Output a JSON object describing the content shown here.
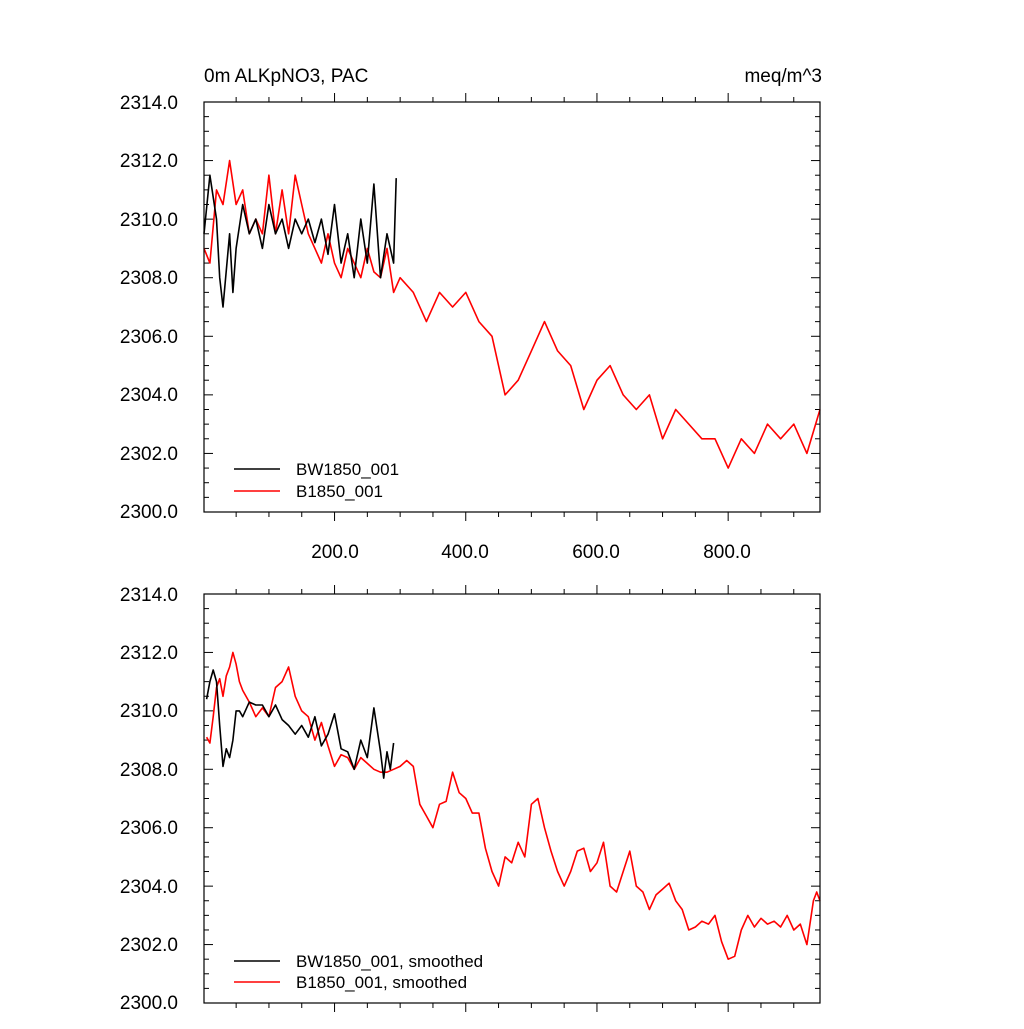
{
  "colors": {
    "BW1850_001": "#000000",
    "B1850_001": "#ff0000"
  },
  "charts": [
    {
      "title_left": "0m ALKpNO3, PAC",
      "title_right": "meq/m^3",
      "y_tick_labels": [
        "2300.0",
        "2302.0",
        "2304.0",
        "2306.0",
        "2308.0",
        "2310.0",
        "2312.0",
        "2314.0"
      ],
      "x_tick_labels": [
        "200.0",
        "400.0",
        "600.0",
        "800.0"
      ],
      "legend": [
        "BW1850_001",
        "B1850_001"
      ]
    },
    {
      "y_tick_labels": [
        "2300.0",
        "2302.0",
        "2304.0",
        "2306.0",
        "2308.0",
        "2310.0",
        "2312.0",
        "2314.0"
      ],
      "legend": [
        "BW1850_001, smoothed",
        "B1850_001, smoothed"
      ]
    }
  ],
  "chart_data": [
    {
      "type": "line",
      "title": "0m ALKpNO3, PAC",
      "units": "meq/m^3",
      "xlim": [
        1,
        940
      ],
      "ylim": [
        2300,
        2314
      ],
      "x_ticks": [
        200,
        400,
        600,
        800
      ],
      "y_ticks": [
        2300,
        2302,
        2304,
        2306,
        2308,
        2310,
        2312,
        2314
      ],
      "legend_position": "bottom-left",
      "series": [
        {
          "name": "BW1850_001",
          "color": "#000000",
          "x": [
            1,
            10,
            20,
            25,
            30,
            40,
            45,
            50,
            60,
            70,
            80,
            90,
            100,
            110,
            120,
            130,
            140,
            150,
            160,
            170,
            180,
            190,
            200,
            210,
            220,
            230,
            240,
            250,
            260,
            270,
            280,
            290,
            294
          ],
          "y": [
            2309.5,
            2311.5,
            2310.0,
            2308.0,
            2307.0,
            2309.5,
            2307.5,
            2309.0,
            2310.5,
            2309.5,
            2310.0,
            2309.0,
            2310.5,
            2309.5,
            2310.0,
            2309.0,
            2310.0,
            2309.5,
            2310.0,
            2309.2,
            2310.0,
            2308.8,
            2310.5,
            2308.5,
            2309.5,
            2308.0,
            2310.0,
            2308.5,
            2311.2,
            2308.0,
            2309.5,
            2308.5,
            2311.4
          ]
        },
        {
          "name": "B1850_001",
          "color": "#ff0000",
          "x": [
            1,
            10,
            20,
            30,
            40,
            50,
            60,
            70,
            80,
            90,
            100,
            110,
            120,
            130,
            140,
            150,
            160,
            170,
            180,
            190,
            200,
            210,
            220,
            230,
            240,
            250,
            260,
            270,
            280,
            290,
            300,
            320,
            340,
            360,
            380,
            400,
            420,
            440,
            460,
            480,
            500,
            520,
            540,
            560,
            580,
            600,
            620,
            640,
            660,
            680,
            700,
            720,
            740,
            760,
            780,
            800,
            820,
            840,
            860,
            880,
            900,
            920,
            940
          ],
          "y": [
            2309.0,
            2308.5,
            2311.0,
            2310.5,
            2312.0,
            2310.5,
            2311.0,
            2309.5,
            2310.0,
            2309.5,
            2311.5,
            2309.5,
            2311.0,
            2309.5,
            2311.5,
            2310.5,
            2309.5,
            2309.0,
            2308.5,
            2309.5,
            2308.5,
            2308.0,
            2309.0,
            2308.5,
            2308.0,
            2309.0,
            2308.2,
            2308.0,
            2309.0,
            2307.5,
            2308.0,
            2307.5,
            2306.5,
            2307.5,
            2307.0,
            2307.5,
            2306.5,
            2306.0,
            2304.0,
            2304.5,
            2305.5,
            2306.5,
            2305.5,
            2305.0,
            2303.5,
            2304.5,
            2305.0,
            2304.0,
            2303.5,
            2304.0,
            2302.5,
            2303.5,
            2303.0,
            2302.5,
            2302.5,
            2301.5,
            2302.5,
            2302.0,
            2303.0,
            2302.5,
            2303.0,
            2302.0,
            2303.5
          ]
        }
      ]
    },
    {
      "type": "line",
      "xlim": [
        1,
        940
      ],
      "ylim": [
        2300,
        2314
      ],
      "x_ticks": [
        200,
        400,
        600,
        800
      ],
      "y_ticks": [
        2300,
        2302,
        2304,
        2306,
        2308,
        2310,
        2312,
        2314
      ],
      "legend_position": "bottom-left",
      "series": [
        {
          "name": "BW1850_001, smoothed",
          "color": "#000000",
          "x": [
            5,
            10,
            15,
            20,
            25,
            30,
            35,
            40,
            45,
            50,
            55,
            60,
            70,
            80,
            90,
            100,
            110,
            120,
            130,
            140,
            150,
            160,
            170,
            180,
            190,
            200,
            210,
            220,
            230,
            240,
            250,
            260,
            270,
            275,
            280,
            285,
            290
          ],
          "y": [
            2310.4,
            2311.0,
            2311.4,
            2311.0,
            2309.5,
            2308.1,
            2308.7,
            2308.4,
            2309.0,
            2310.0,
            2310.0,
            2309.8,
            2310.3,
            2310.2,
            2310.2,
            2309.8,
            2310.2,
            2309.7,
            2309.5,
            2309.2,
            2309.5,
            2309.1,
            2309.8,
            2308.8,
            2309.2,
            2309.9,
            2308.7,
            2308.6,
            2308.0,
            2309.0,
            2308.4,
            2310.1,
            2308.6,
            2307.7,
            2308.6,
            2308.0,
            2308.9
          ]
        },
        {
          "name": "B1850_001, smoothed",
          "color": "#ff0000",
          "x": [
            5,
            10,
            15,
            20,
            25,
            30,
            35,
            40,
            45,
            50,
            55,
            60,
            70,
            80,
            90,
            100,
            110,
            120,
            130,
            140,
            150,
            160,
            170,
            180,
            190,
            200,
            210,
            220,
            230,
            240,
            250,
            260,
            270,
            280,
            290,
            300,
            310,
            320,
            330,
            340,
            350,
            360,
            370,
            380,
            390,
            400,
            410,
            420,
            430,
            440,
            450,
            460,
            470,
            480,
            490,
            500,
            510,
            520,
            530,
            540,
            550,
            560,
            570,
            580,
            590,
            600,
            610,
            620,
            630,
            640,
            650,
            660,
            670,
            680,
            690,
            700,
            710,
            720,
            730,
            740,
            750,
            760,
            770,
            780,
            790,
            800,
            810,
            820,
            830,
            840,
            850,
            860,
            870,
            880,
            890,
            900,
            910,
            920,
            930,
            935,
            940
          ],
          "y": [
            2309.1,
            2308.9,
            2309.8,
            2310.8,
            2311.1,
            2310.5,
            2311.2,
            2311.5,
            2312.0,
            2311.6,
            2311.0,
            2310.7,
            2310.3,
            2309.8,
            2310.1,
            2309.8,
            2310.8,
            2311.0,
            2311.5,
            2310.5,
            2310.0,
            2309.8,
            2309.0,
            2309.6,
            2308.8,
            2308.1,
            2308.5,
            2308.4,
            2308.0,
            2308.4,
            2308.2,
            2308.0,
            2307.9,
            2307.9,
            2308.0,
            2308.1,
            2308.3,
            2308.1,
            2306.8,
            2306.4,
            2306.0,
            2306.8,
            2306.9,
            2307.9,
            2307.2,
            2307.0,
            2306.5,
            2306.5,
            2305.3,
            2304.5,
            2304.0,
            2305.0,
            2304.8,
            2305.5,
            2305.0,
            2306.8,
            2307.0,
            2306.0,
            2305.2,
            2304.5,
            2304.0,
            2304.5,
            2305.2,
            2305.3,
            2304.5,
            2304.8,
            2305.5,
            2304.0,
            2303.8,
            2304.5,
            2305.2,
            2304.0,
            2303.8,
            2303.2,
            2303.7,
            2303.9,
            2304.1,
            2303.5,
            2303.2,
            2302.5,
            2302.6,
            2302.8,
            2302.7,
            2303.0,
            2302.1,
            2301.5,
            2301.6,
            2302.5,
            2303.0,
            2302.6,
            2302.9,
            2302.7,
            2302.8,
            2302.6,
            2303.0,
            2302.5,
            2302.7,
            2302.0,
            2303.5,
            2303.8,
            2303.5
          ]
        }
      ]
    }
  ]
}
